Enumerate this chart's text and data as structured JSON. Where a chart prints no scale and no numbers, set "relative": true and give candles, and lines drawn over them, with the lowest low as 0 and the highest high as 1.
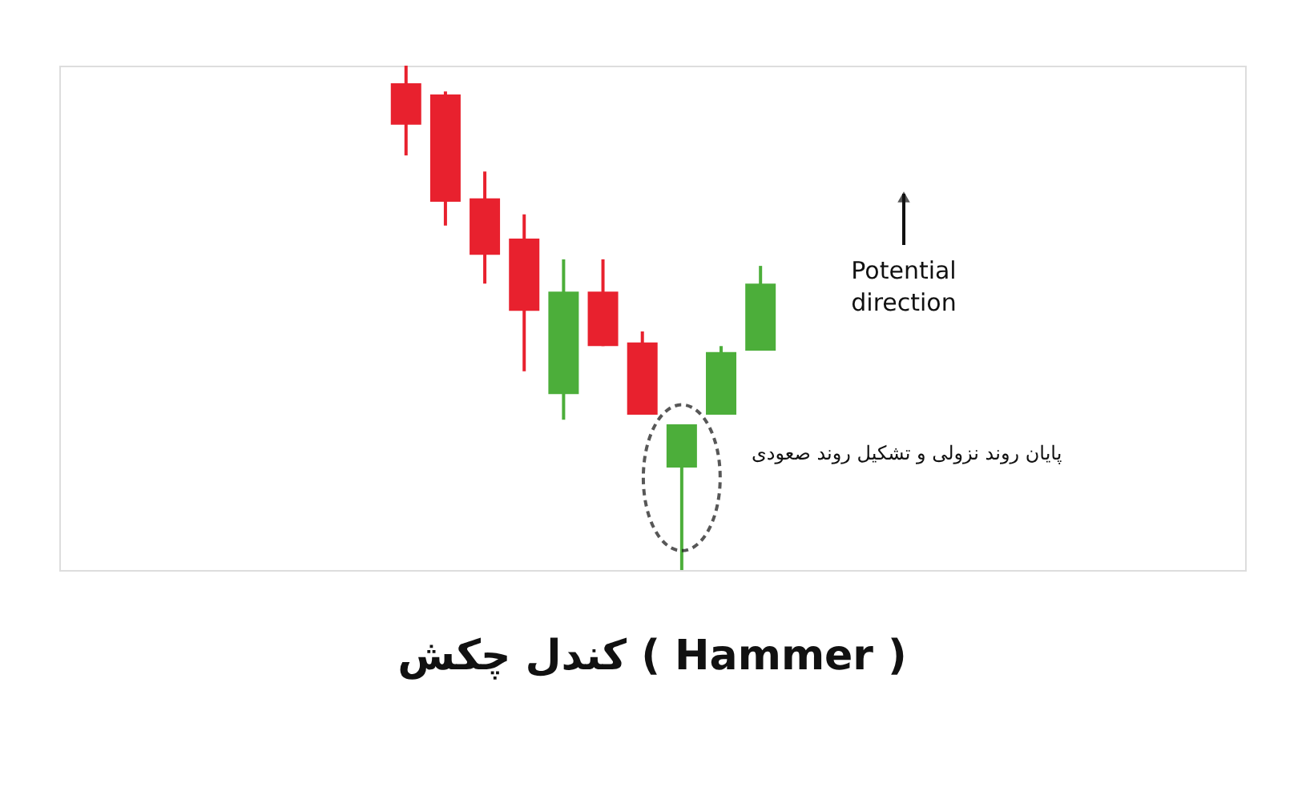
{
  "chart_data": {
    "type": "candlestick",
    "title": "کندل چکش ( Hammer )",
    "relative": true,
    "categories": [
      null,
      null,
      null,
      null,
      null,
      null,
      null,
      null,
      null,
      null
    ],
    "ohlc": [
      [
        0.965,
        1.0,
        0.822,
        0.883
      ],
      [
        0.943,
        0.949,
        0.683,
        0.73
      ],
      [
        0.737,
        0.79,
        0.568,
        0.625
      ],
      [
        0.657,
        0.705,
        0.394,
        0.514
      ],
      [
        0.349,
        0.616,
        0.298,
        0.552
      ],
      [
        0.552,
        0.616,
        0.444,
        0.444
      ],
      [
        0.451,
        0.473,
        0.308,
        0.308
      ],
      [
        0.203,
        0.289,
        0.0,
        0.289
      ],
      [
        0.308,
        0.444,
        0.308,
        0.432
      ],
      [
        0.435,
        0.603,
        0.435,
        0.568
      ]
    ],
    "colors": [
      "#e8212e",
      "#e8212e",
      "#e8212e",
      "#e8212e",
      "#4cae3a",
      "#e8212e",
      "#e8212e",
      "#4cae3a",
      "#4cae3a",
      "#4cae3a"
    ],
    "annotations": [
      "Potential direction",
      "پایان روند نزولی و تشکیل روند صعودی"
    ]
  }
}
